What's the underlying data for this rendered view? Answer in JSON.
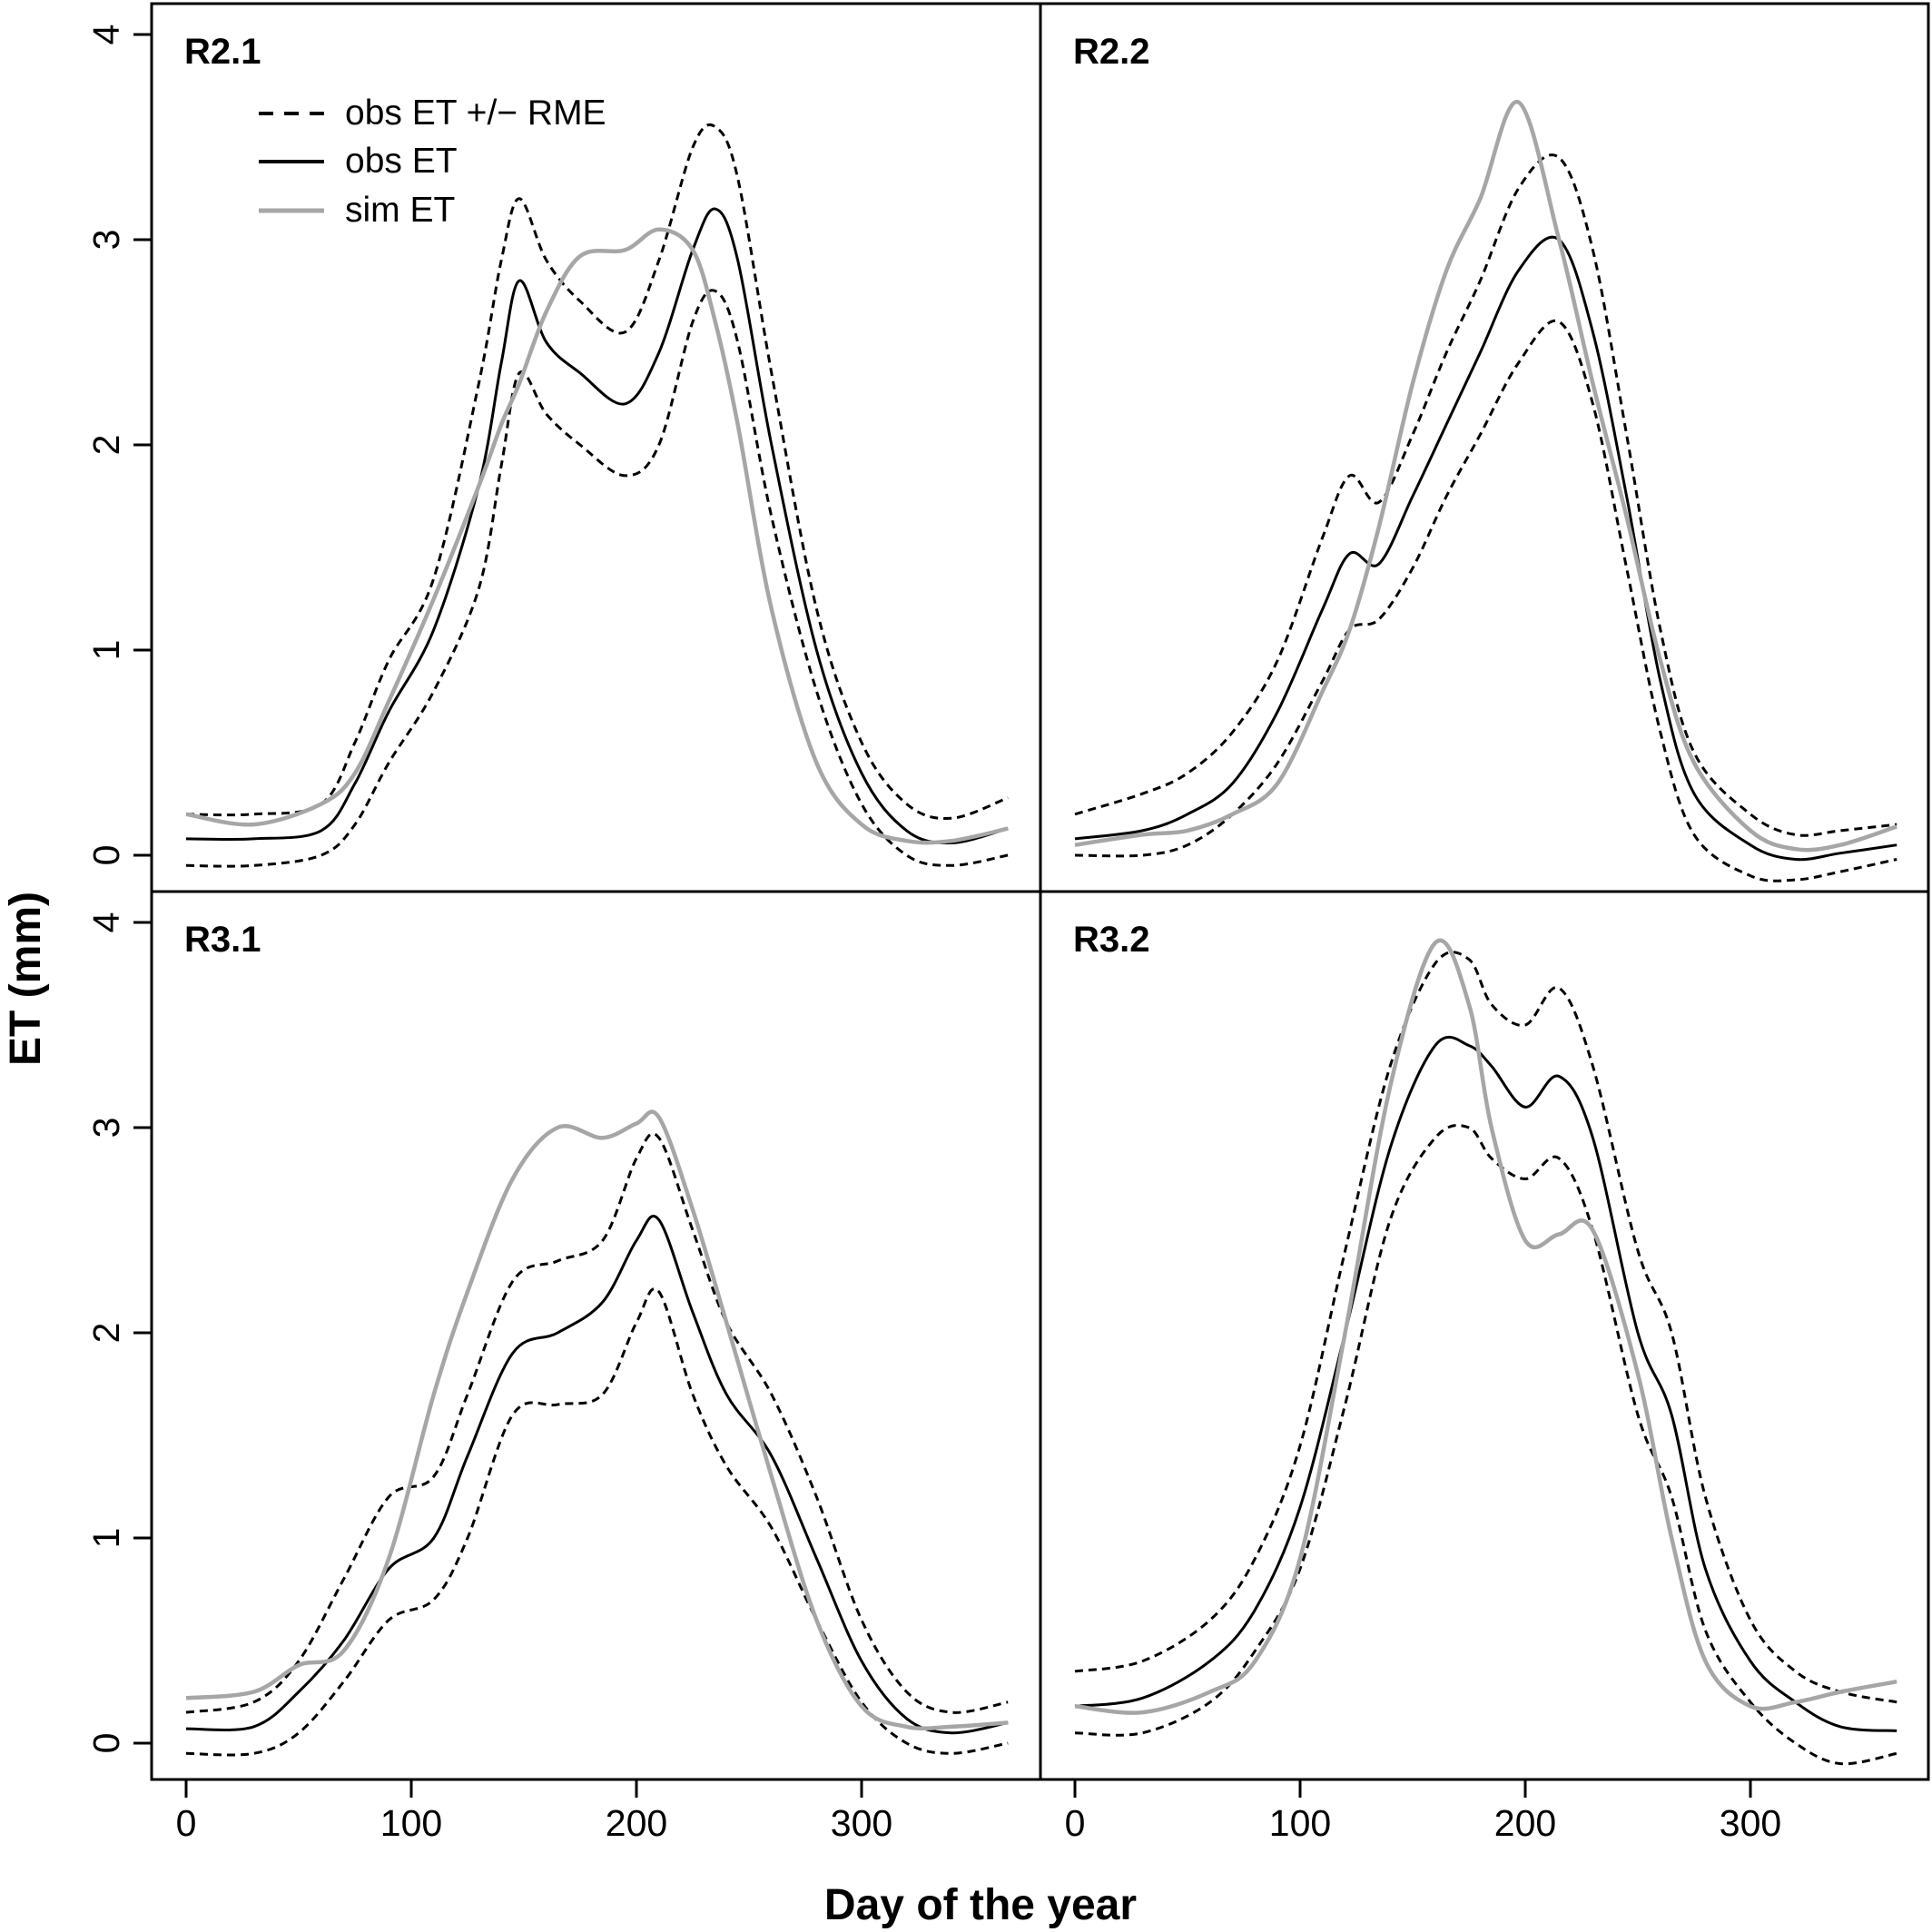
{
  "chart_data": {
    "type": "line",
    "xlabel": "Day of the year",
    "ylabel": "ET (mm)",
    "xlim": [
      0,
      365
    ],
    "ylim": [
      0,
      4
    ],
    "x_ticks": [
      "0",
      "100",
      "200",
      "300"
    ],
    "y_ticks": [
      "0",
      "1",
      "2",
      "3",
      "4"
    ],
    "grid": false,
    "legend": {
      "placement": "top-left of panel R2.1",
      "entries": [
        {
          "label": "obs ET +/− RME",
          "style": "dashed",
          "color": "#000000"
        },
        {
          "label": "obs ET",
          "style": "solid",
          "color": "#000000"
        },
        {
          "label": "sim ET",
          "style": "solid",
          "color": "#a6a6a6"
        }
      ]
    },
    "colors": {
      "obs": "#000000",
      "sim": "#a6a6a6"
    },
    "panels": [
      {
        "label": "R2.1",
        "x": [
          0,
          30,
          60,
          75,
          90,
          110,
          130,
          140,
          148,
          160,
          175,
          195,
          210,
          225,
          235,
          245,
          260,
          280,
          300,
          320,
          340,
          365
        ],
        "series": [
          {
            "name": "obs ET",
            "values": [
              0.08,
              0.08,
              0.12,
              0.35,
              0.7,
              1.1,
              1.8,
              2.4,
              2.8,
              2.5,
              2.35,
              2.2,
              2.45,
              2.95,
              3.15,
              2.9,
              2.0,
              1.0,
              0.4,
              0.12,
              0.06,
              0.13
            ]
          },
          {
            "name": "obs ET − RME",
            "values": [
              -0.05,
              -0.05,
              0.0,
              0.15,
              0.45,
              0.8,
              1.3,
              1.9,
              2.35,
              2.15,
              2.0,
              1.85,
              2.0,
              2.6,
              2.75,
              2.5,
              1.65,
              0.8,
              0.25,
              0.0,
              -0.05,
              0.0
            ]
          },
          {
            "name": "obs ET + RME",
            "values": [
              0.2,
              0.2,
              0.25,
              0.55,
              0.95,
              1.35,
              2.3,
              2.9,
              3.2,
              2.9,
              2.7,
              2.55,
              2.9,
              3.45,
              3.55,
              3.3,
              2.35,
              1.2,
              0.55,
              0.25,
              0.18,
              0.28
            ]
          },
          {
            "name": "sim ET",
            "values": [
              0.2,
              0.15,
              0.25,
              0.4,
              0.75,
              1.25,
              1.8,
              2.1,
              2.3,
              2.65,
              2.92,
              2.95,
              3.05,
              2.95,
              2.6,
              2.1,
              1.2,
              0.45,
              0.15,
              0.07,
              0.07,
              0.13
            ]
          }
        ]
      },
      {
        "label": "R2.2",
        "x": [
          0,
          30,
          50,
          70,
          90,
          110,
          122,
          135,
          150,
          165,
          180,
          197,
          215,
          230,
          245,
          260,
          275,
          300,
          320,
          340,
          365
        ],
        "series": [
          {
            "name": "obs ET",
            "values": [
              0.08,
              0.12,
              0.2,
              0.35,
              0.7,
              1.2,
              1.47,
              1.42,
              1.75,
              2.1,
              2.45,
              2.85,
              3.0,
              2.55,
              1.75,
              0.85,
              0.3,
              0.05,
              -0.02,
              0.01,
              0.05
            ]
          },
          {
            "name": "obs ET − RME",
            "values": [
              0.0,
              0.0,
              0.05,
              0.2,
              0.45,
              0.85,
              1.1,
              1.15,
              1.4,
              1.75,
              2.05,
              2.4,
              2.6,
              2.2,
              1.4,
              0.6,
              0.1,
              -0.1,
              -0.12,
              -0.08,
              -0.02
            ]
          },
          {
            "name": "obs ET + RME",
            "values": [
              0.2,
              0.3,
              0.4,
              0.6,
              0.95,
              1.55,
              1.85,
              1.72,
              2.05,
              2.45,
              2.8,
              3.25,
              3.4,
              2.95,
              2.05,
              1.1,
              0.5,
              0.2,
              0.1,
              0.12,
              0.15
            ]
          },
          {
            "name": "sim ET",
            "values": [
              0.05,
              0.1,
              0.12,
              0.2,
              0.35,
              0.8,
              1.1,
              1.6,
              2.3,
              2.85,
              3.2,
              3.67,
              3.0,
              2.3,
              1.65,
              0.95,
              0.45,
              0.12,
              0.03,
              0.05,
              0.14
            ]
          }
        ]
      },
      {
        "label": "R3.1",
        "x": [
          0,
          30,
          50,
          70,
          90,
          110,
          125,
          145,
          165,
          185,
          200,
          210,
          225,
          240,
          260,
          280,
          300,
          320,
          340,
          365
        ],
        "series": [
          {
            "name": "obs ET",
            "values": [
              0.07,
              0.08,
              0.25,
              0.5,
              0.85,
              1.0,
              1.4,
              1.9,
              2.0,
              2.15,
              2.45,
              2.55,
              2.1,
              1.7,
              1.4,
              0.9,
              0.4,
              0.12,
              0.05,
              0.1
            ]
          },
          {
            "name": "obs ET − RME",
            "values": [
              -0.05,
              -0.05,
              0.05,
              0.3,
              0.6,
              0.7,
              1.0,
              1.6,
              1.65,
              1.7,
              2.05,
              2.2,
              1.7,
              1.35,
              1.05,
              0.6,
              0.2,
              0.0,
              -0.05,
              0.0
            ]
          },
          {
            "name": "obs ET + RME",
            "values": [
              0.15,
              0.2,
              0.4,
              0.8,
              1.2,
              1.3,
              1.7,
              2.25,
              2.35,
              2.45,
              2.85,
              2.95,
              2.5,
              2.05,
              1.7,
              1.2,
              0.6,
              0.25,
              0.15,
              0.2
            ]
          },
          {
            "name": "sim ET",
            "values": [
              0.22,
              0.25,
              0.38,
              0.45,
              0.9,
              1.7,
              2.2,
              2.75,
              3.0,
              2.95,
              3.02,
              3.05,
              2.6,
              2.05,
              1.3,
              0.6,
              0.18,
              0.08,
              0.08,
              0.1
            ]
          }
        ]
      },
      {
        "label": "R3.2",
        "x": [
          0,
          30,
          60,
          80,
          100,
          120,
          140,
          160,
          175,
          185,
          200,
          215,
          230,
          250,
          265,
          280,
          300,
          320,
          340,
          365
        ],
        "series": [
          {
            "name": "obs ET",
            "values": [
              0.18,
              0.22,
              0.4,
              0.65,
              1.15,
              2.0,
              2.9,
              3.4,
              3.4,
              3.3,
              3.1,
              3.25,
              2.95,
              2.0,
              1.6,
              0.85,
              0.4,
              0.2,
              0.08,
              0.06
            ]
          },
          {
            "name": "obs ET − RME",
            "values": [
              0.05,
              0.05,
              0.2,
              0.45,
              0.85,
              1.65,
              2.55,
              2.95,
              3.0,
              2.85,
              2.75,
              2.85,
              2.5,
              1.6,
              1.2,
              0.55,
              0.2,
              0.0,
              -0.1,
              -0.05
            ]
          },
          {
            "name": "obs ET + RME",
            "values": [
              0.35,
              0.4,
              0.6,
              0.9,
              1.45,
              2.4,
              3.3,
              3.8,
              3.82,
              3.6,
              3.5,
              3.68,
              3.3,
              2.4,
              2.0,
              1.2,
              0.6,
              0.35,
              0.25,
              0.2
            ]
          },
          {
            "name": "sim ET",
            "values": [
              0.18,
              0.15,
              0.25,
              0.4,
              0.9,
              2.0,
              3.2,
              3.9,
              3.6,
              3.0,
              2.45,
              2.48,
              2.5,
              1.8,
              1.0,
              0.4,
              0.18,
              0.2,
              0.25,
              0.3
            ]
          }
        ]
      }
    ]
  }
}
